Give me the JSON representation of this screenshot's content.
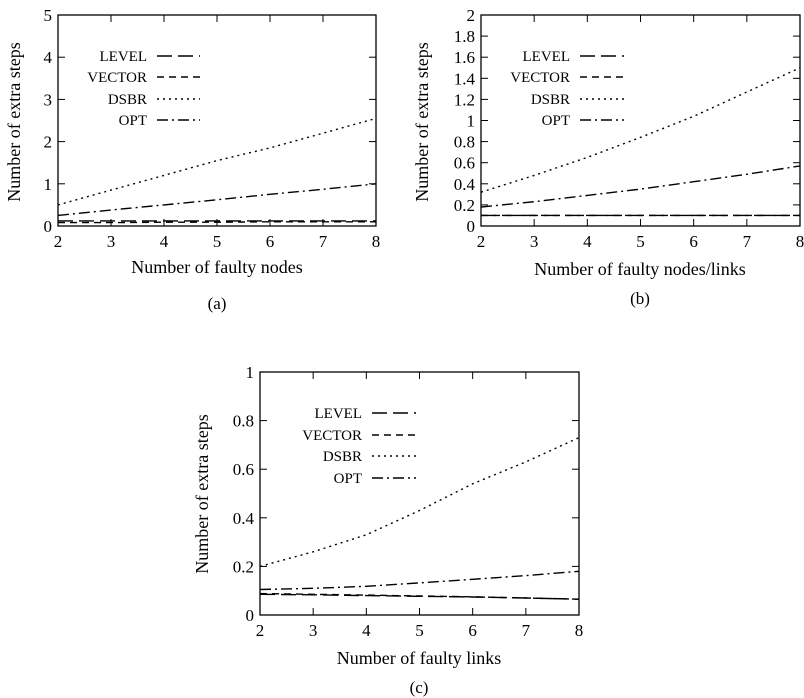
{
  "line_styles": {
    "LEVEL": "long-dash",
    "VECTOR": "short-dash",
    "DSBR": "dotted",
    "OPT": "dash-dot"
  },
  "chart_data": [
    {
      "type": "line",
      "caption": "(a)",
      "xlabel": "Number of faulty nodes",
      "ylabel": "Number of extra steps",
      "xlim": [
        2,
        8
      ],
      "ylim": [
        0,
        5
      ],
      "xticks": [
        2,
        3,
        4,
        5,
        6,
        7,
        8
      ],
      "yticks": [
        0,
        1,
        2,
        3,
        4,
        5
      ],
      "legend_position": "top-left",
      "series": [
        {
          "name": "LEVEL",
          "x": [
            2,
            3,
            4,
            5,
            6,
            7,
            8
          ],
          "values": [
            0.12,
            0.12,
            0.12,
            0.12,
            0.12,
            0.12,
            0.12
          ]
        },
        {
          "name": "VECTOR",
          "x": [
            2,
            3,
            4,
            5,
            6,
            7,
            8
          ],
          "values": [
            0.08,
            0.08,
            0.09,
            0.09,
            0.1,
            0.1,
            0.1
          ]
        },
        {
          "name": "DSBR",
          "x": [
            2,
            3,
            4,
            5,
            6,
            7,
            8
          ],
          "values": [
            0.5,
            0.85,
            1.2,
            1.55,
            1.85,
            2.2,
            2.55
          ]
        },
        {
          "name": "OPT",
          "x": [
            2,
            3,
            4,
            5,
            6,
            7,
            8
          ],
          "values": [
            0.25,
            0.38,
            0.5,
            0.62,
            0.75,
            0.87,
            1.0
          ]
        }
      ]
    },
    {
      "type": "line",
      "caption": "(b)",
      "xlabel": "Number of faulty nodes/links",
      "ylabel": "Number of extra steps",
      "xlim": [
        2,
        8
      ],
      "ylim": [
        0,
        2
      ],
      "xticks": [
        2,
        3,
        4,
        5,
        6,
        7,
        8
      ],
      "yticks": [
        0,
        0.2,
        0.4,
        0.6,
        0.8,
        1,
        1.2,
        1.4,
        1.6,
        1.8,
        2
      ],
      "legend_position": "top-left",
      "series": [
        {
          "name": "LEVEL",
          "x": [
            2,
            3,
            4,
            5,
            6,
            7,
            8
          ],
          "values": [
            0.1,
            0.1,
            0.1,
            0.1,
            0.1,
            0.1,
            0.1
          ]
        },
        {
          "name": "VECTOR",
          "x": [
            2,
            3,
            4,
            5,
            6,
            7,
            8
          ],
          "values": [
            0.1,
            0.1,
            0.1,
            0.1,
            0.1,
            0.1,
            0.1
          ]
        },
        {
          "name": "DSBR",
          "x": [
            2,
            3,
            4,
            5,
            6,
            7,
            8
          ],
          "values": [
            0.32,
            0.48,
            0.65,
            0.84,
            1.04,
            1.27,
            1.5
          ]
        },
        {
          "name": "OPT",
          "x": [
            2,
            3,
            4,
            5,
            6,
            7,
            8
          ],
          "values": [
            0.18,
            0.23,
            0.29,
            0.35,
            0.42,
            0.49,
            0.57
          ]
        }
      ]
    },
    {
      "type": "line",
      "caption": "(c)",
      "xlabel": "Number of faulty links",
      "ylabel": "Number of extra steps",
      "xlim": [
        2,
        8
      ],
      "ylim": [
        0,
        1
      ],
      "xticks": [
        2,
        3,
        4,
        5,
        6,
        7,
        8
      ],
      "yticks": [
        0,
        0.2,
        0.4,
        0.6,
        0.8,
        1
      ],
      "legend_position": "top-left",
      "series": [
        {
          "name": "LEVEL",
          "x": [
            2,
            3,
            4,
            5,
            6,
            7,
            8
          ],
          "values": [
            0.085,
            0.083,
            0.08,
            0.077,
            0.074,
            0.07,
            0.065
          ]
        },
        {
          "name": "VECTOR",
          "x": [
            2,
            3,
            4,
            5,
            6,
            7,
            8
          ],
          "values": [
            0.088,
            0.085,
            0.082,
            0.078,
            0.075,
            0.07,
            0.065
          ]
        },
        {
          "name": "DSBR",
          "x": [
            2,
            3,
            4,
            5,
            6,
            7,
            8
          ],
          "values": [
            0.2,
            0.26,
            0.33,
            0.43,
            0.54,
            0.63,
            0.73
          ]
        },
        {
          "name": "OPT",
          "x": [
            2,
            3,
            4,
            5,
            6,
            7,
            8
          ],
          "values": [
            0.105,
            0.11,
            0.118,
            0.132,
            0.147,
            0.162,
            0.18
          ]
        }
      ]
    }
  ]
}
